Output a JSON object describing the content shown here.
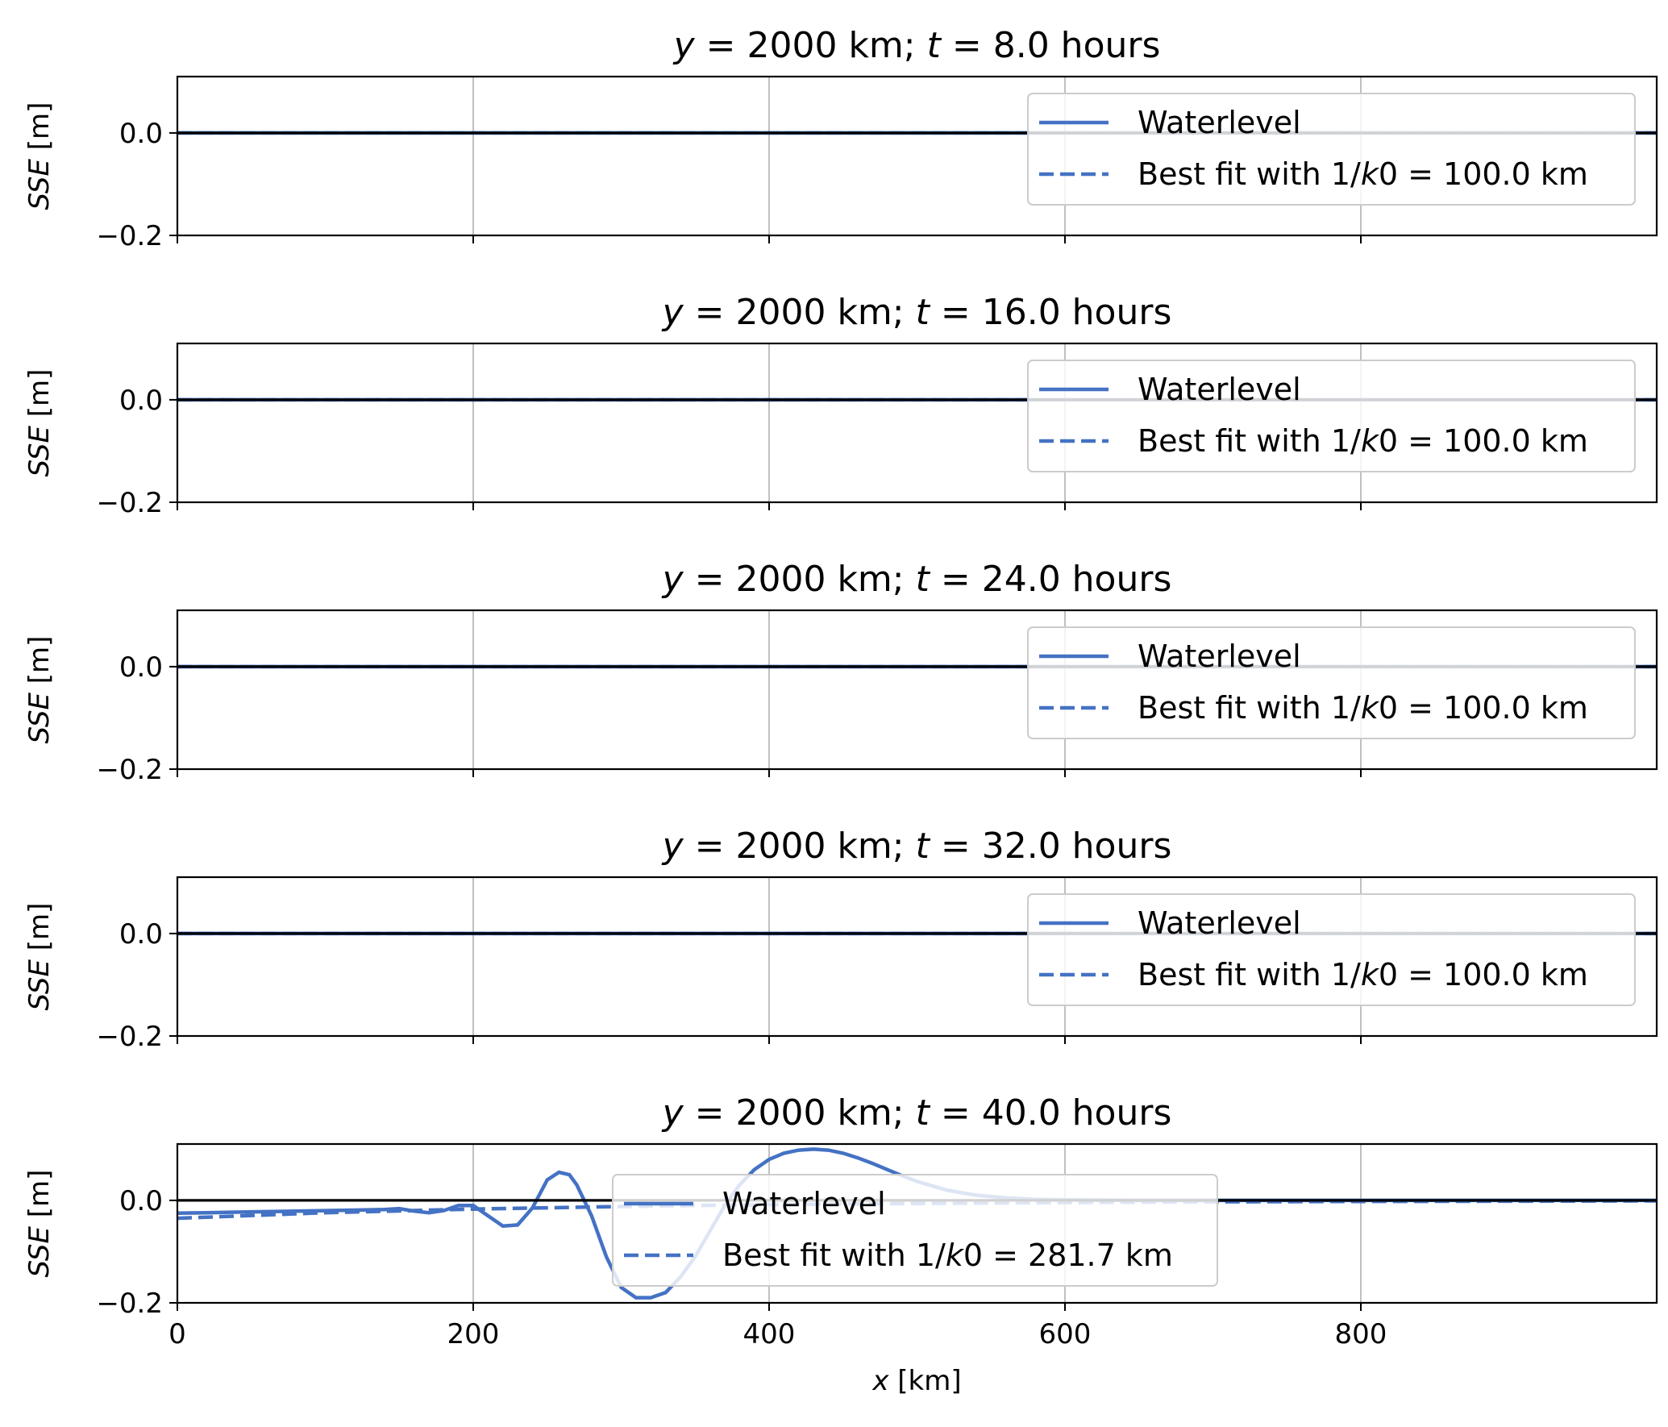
{
  "chart_data": [
    {
      "type": "line",
      "title": {
        "pre": "y",
        "mid": " = 2000 km; ",
        "var": "t",
        "post": " = 8.0 hours"
      },
      "ylabel": {
        "var": "SSE",
        "unit": " [m]"
      },
      "yticks": [
        -0.2,
        0.0
      ],
      "ytick_labels": [
        "−0.2",
        "0.0"
      ],
      "xticks": [
        0,
        200,
        400,
        600,
        800
      ],
      "xtick_labels": [],
      "xlim": [
        0,
        1000
      ],
      "ylim": [
        -0.2,
        0.11
      ],
      "grid": true,
      "legend_placement": "upper right",
      "series": [
        {
          "name": "Waterlevel",
          "style": "solid",
          "x": [
            0,
            1000
          ],
          "y": [
            0.0,
            0.0
          ]
        },
        {
          "name": "Best fit with 1/k0 = 100.0 km",
          "legend": {
            "pre": "Best fit with 1/",
            "var": "k",
            "post": "0 = 100.0 km"
          },
          "style": "dashed",
          "x": [
            0,
            1000
          ],
          "y": [
            0.0,
            0.0
          ]
        }
      ]
    },
    {
      "type": "line",
      "title": {
        "pre": "y",
        "mid": " = 2000 km; ",
        "var": "t",
        "post": " = 16.0 hours"
      },
      "ylabel": {
        "var": "SSE",
        "unit": " [m]"
      },
      "yticks": [
        -0.2,
        0.0
      ],
      "ytick_labels": [
        "−0.2",
        "0.0"
      ],
      "xticks": [
        0,
        200,
        400,
        600,
        800
      ],
      "xtick_labels": [],
      "xlim": [
        0,
        1000
      ],
      "ylim": [
        -0.2,
        0.11
      ],
      "grid": true,
      "legend_placement": "upper right",
      "series": [
        {
          "name": "Waterlevel",
          "style": "solid",
          "x": [
            0,
            1000
          ],
          "y": [
            0.0,
            0.0
          ]
        },
        {
          "name": "Best fit with 1/k0 = 100.0 km",
          "legend": {
            "pre": "Best fit with 1/",
            "var": "k",
            "post": "0 = 100.0 km"
          },
          "style": "dashed",
          "x": [
            0,
            1000
          ],
          "y": [
            0.0,
            0.0
          ]
        }
      ]
    },
    {
      "type": "line",
      "title": {
        "pre": "y",
        "mid": " = 2000 km; ",
        "var": "t",
        "post": " = 24.0 hours"
      },
      "ylabel": {
        "var": "SSE",
        "unit": " [m]"
      },
      "yticks": [
        -0.2,
        0.0
      ],
      "ytick_labels": [
        "−0.2",
        "0.0"
      ],
      "xticks": [
        0,
        200,
        400,
        600,
        800
      ],
      "xtick_labels": [],
      "xlim": [
        0,
        1000
      ],
      "ylim": [
        -0.2,
        0.11
      ],
      "grid": true,
      "legend_placement": "upper right",
      "series": [
        {
          "name": "Waterlevel",
          "style": "solid",
          "x": [
            0,
            1000
          ],
          "y": [
            0.0,
            0.0
          ]
        },
        {
          "name": "Best fit with 1/k0 = 100.0 km",
          "legend": {
            "pre": "Best fit with 1/",
            "var": "k",
            "post": "0 = 100.0 km"
          },
          "style": "dashed",
          "x": [
            0,
            1000
          ],
          "y": [
            0.0,
            0.0
          ]
        }
      ]
    },
    {
      "type": "line",
      "title": {
        "pre": "y",
        "mid": " = 2000 km; ",
        "var": "t",
        "post": " = 32.0 hours"
      },
      "ylabel": {
        "var": "SSE",
        "unit": " [m]"
      },
      "yticks": [
        -0.2,
        0.0
      ],
      "ytick_labels": [
        "−0.2",
        "0.0"
      ],
      "xticks": [
        0,
        200,
        400,
        600,
        800
      ],
      "xtick_labels": [],
      "xlim": [
        0,
        1000
      ],
      "ylim": [
        -0.2,
        0.11
      ],
      "grid": true,
      "legend_placement": "upper right",
      "series": [
        {
          "name": "Waterlevel",
          "style": "solid",
          "x": [
            0,
            1000
          ],
          "y": [
            0.0,
            0.0
          ]
        },
        {
          "name": "Best fit with 1/k0 = 100.0 km",
          "legend": {
            "pre": "Best fit with 1/",
            "var": "k",
            "post": "0 = 100.0 km"
          },
          "style": "dashed",
          "x": [
            0,
            1000
          ],
          "y": [
            0.0,
            0.0
          ]
        }
      ]
    },
    {
      "type": "line",
      "title": {
        "pre": "y",
        "mid": " = 2000 km; ",
        "var": "t",
        "post": " = 40.0 hours"
      },
      "ylabel": {
        "var": "SSE",
        "unit": " [m]"
      },
      "xlabel": {
        "var": "x",
        "unit": " [km]"
      },
      "yticks": [
        -0.2,
        0.0
      ],
      "ytick_labels": [
        "−0.2",
        "0.0"
      ],
      "xticks": [
        0,
        200,
        400,
        600,
        800
      ],
      "xtick_labels": [
        "0",
        "200",
        "400",
        "600",
        "800"
      ],
      "xlim": [
        0,
        1000
      ],
      "ylim": [
        -0.2,
        0.11
      ],
      "grid": true,
      "legend_placement": "lower center",
      "series": [
        {
          "name": "Waterlevel",
          "style": "solid",
          "x": [
            0,
            20,
            40,
            60,
            80,
            100,
            120,
            140,
            150,
            160,
            170,
            180,
            190,
            200,
            210,
            220,
            230,
            240,
            250,
            258,
            265,
            270,
            280,
            290,
            300,
            310,
            320,
            330,
            340,
            350,
            360,
            370,
            380,
            390,
            400,
            410,
            420,
            430,
            440,
            450,
            460,
            470,
            480,
            490,
            500,
            520,
            540,
            560,
            580,
            600,
            650,
            700,
            800,
            900,
            1000
          ],
          "y": [
            -0.025,
            -0.024,
            -0.023,
            -0.022,
            -0.021,
            -0.02,
            -0.019,
            -0.018,
            -0.016,
            -0.021,
            -0.024,
            -0.02,
            -0.01,
            -0.01,
            -0.03,
            -0.05,
            -0.048,
            -0.015,
            0.04,
            0.055,
            0.05,
            0.03,
            -0.03,
            -0.11,
            -0.17,
            -0.19,
            -0.19,
            -0.18,
            -0.15,
            -0.11,
            -0.06,
            -0.01,
            0.03,
            0.06,
            0.08,
            0.092,
            0.098,
            0.1,
            0.098,
            0.092,
            0.083,
            0.072,
            0.06,
            0.048,
            0.037,
            0.02,
            0.01,
            0.005,
            0.002,
            0.001,
            0.0,
            0.0,
            0.0,
            0.0,
            0.0
          ]
        },
        {
          "name": "Best fit with 1/k0 = 281.7 km",
          "legend": {
            "pre": "Best fit with 1/",
            "var": "k",
            "post": "0 = 281.7 km"
          },
          "style": "dashed",
          "x": [
            0,
            100,
            200,
            300,
            400,
            500,
            600,
            700,
            800,
            900,
            1000
          ],
          "y": [
            -0.035,
            -0.024,
            -0.017,
            -0.012,
            -0.0084,
            -0.0059,
            -0.0042,
            -0.0029,
            -0.0021,
            -0.0015,
            -0.001
          ]
        }
      ]
    }
  ],
  "colors": {
    "line": "#4472c4",
    "zero": "#000000",
    "grid": "#b0b0b0"
  }
}
